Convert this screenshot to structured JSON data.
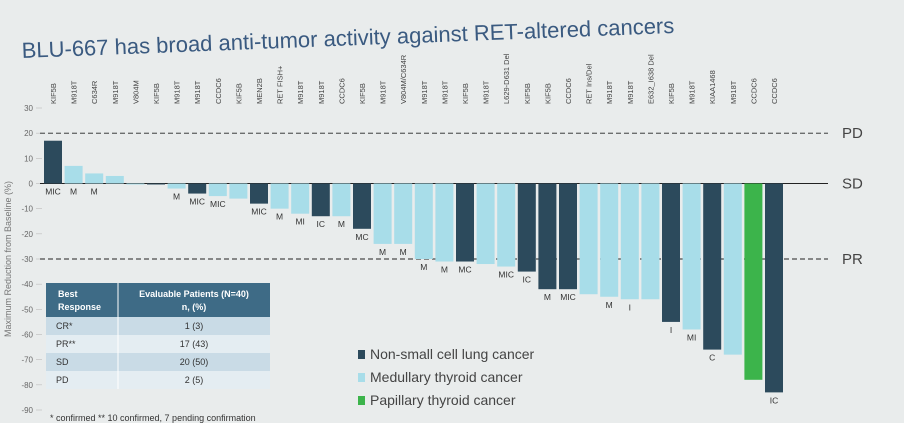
{
  "chart_data": {
    "type": "bar",
    "title": "BLU-667 has broad anti-tumor activity against RET-altered cancers",
    "ylabel": "Maximum Reduction from Baseline (%)",
    "ylim": [
      -90,
      30
    ],
    "yticks": [
      30,
      20,
      10,
      0,
      -10,
      -20,
      -30,
      -40,
      -50,
      -60,
      -70,
      -80,
      -90
    ],
    "reference_lines": [
      {
        "label": "PD",
        "value": 20,
        "style": "dashed"
      },
      {
        "label": "SD",
        "value": 0,
        "style": "solid"
      },
      {
        "label": "PR",
        "value": -30,
        "style": "dashed"
      }
    ],
    "legend": [
      {
        "key": "nsclc",
        "label": "Non-small cell lung cancer",
        "color": "#2c4a5c"
      },
      {
        "key": "mtc",
        "label": "Medullary thyroid cancer",
        "color": "#a8dde9"
      },
      {
        "key": "ptc",
        "label": "Papillary thyroid cancer",
        "color": "#3cb44b"
      }
    ],
    "bars": [
      {
        "mutation": "KIF5B",
        "value": 17,
        "type": "nsclc",
        "label": "MIC"
      },
      {
        "mutation": "M918T",
        "value": 7,
        "type": "mtc",
        "label": "M"
      },
      {
        "mutation": "C634R",
        "value": 4,
        "type": "mtc",
        "label": "M"
      },
      {
        "mutation": "M918T",
        "value": 3,
        "type": "mtc",
        "label": ""
      },
      {
        "mutation": "V804M",
        "value": 0,
        "type": "mtc",
        "label": ""
      },
      {
        "mutation": "KIF5B",
        "value": 0,
        "type": "nsclc",
        "label": ""
      },
      {
        "mutation": "M918T",
        "value": -2,
        "type": "mtc",
        "label": "M"
      },
      {
        "mutation": "M918T",
        "value": -4,
        "type": "nsclc",
        "label": "MIC"
      },
      {
        "mutation": "CCDC6",
        "value": -5,
        "type": "mtc",
        "label": "MIC"
      },
      {
        "mutation": "KIF5B",
        "value": -6,
        "type": "mtc",
        "label": ""
      },
      {
        "mutation": "MEN2B",
        "value": -8,
        "type": "nsclc",
        "label": "MIC"
      },
      {
        "mutation": "RET FISH+",
        "value": -10,
        "type": "mtc",
        "label": "M"
      },
      {
        "mutation": "M918T",
        "value": -12,
        "type": "mtc",
        "label": "MI"
      },
      {
        "mutation": "M918T",
        "value": -13,
        "type": "nsclc",
        "label": "IC"
      },
      {
        "mutation": "CCDC6",
        "value": -13,
        "type": "mtc",
        "label": "M"
      },
      {
        "mutation": "KIF5B",
        "value": -18,
        "type": "nsclc",
        "label": "MC"
      },
      {
        "mutation": "M918T",
        "value": -24,
        "type": "mtc",
        "label": "M"
      },
      {
        "mutation": "V804M/C634R",
        "value": -24,
        "type": "mtc",
        "label": "M"
      },
      {
        "mutation": "M918T",
        "value": -30,
        "type": "mtc",
        "label": "M"
      },
      {
        "mutation": "M918T",
        "value": -31,
        "type": "mtc",
        "label": "M"
      },
      {
        "mutation": "KIF5B",
        "value": -31,
        "type": "nsclc",
        "label": "MC"
      },
      {
        "mutation": "M918T",
        "value": -32,
        "type": "mtc",
        "label": ""
      },
      {
        "mutation": "L629-D631 Del",
        "value": -33,
        "type": "mtc",
        "label": "MIC"
      },
      {
        "mutation": "KIF5B",
        "value": -35,
        "type": "nsclc",
        "label": "IC"
      },
      {
        "mutation": "KIF5B",
        "value": -42,
        "type": "nsclc",
        "label": "M"
      },
      {
        "mutation": "CCDC6",
        "value": -42,
        "type": "nsclc",
        "label": "MIC"
      },
      {
        "mutation": "RET Ins/Del",
        "value": -44,
        "type": "mtc",
        "label": ""
      },
      {
        "mutation": "M918T",
        "value": -45,
        "type": "mtc",
        "label": "M"
      },
      {
        "mutation": "M918T",
        "value": -46,
        "type": "mtc",
        "label": "I"
      },
      {
        "mutation": "E632_I638 Del",
        "value": -46,
        "type": "mtc",
        "label": ""
      },
      {
        "mutation": "KIF5B",
        "value": -55,
        "type": "nsclc",
        "label": "I"
      },
      {
        "mutation": "M918T",
        "value": -58,
        "type": "mtc",
        "label": "MI"
      },
      {
        "mutation": "KIAA1468",
        "value": -66,
        "type": "nsclc",
        "label": "C"
      },
      {
        "mutation": "M918T",
        "value": -68,
        "type": "mtc",
        "label": ""
      },
      {
        "mutation": "CCDC6",
        "value": -78,
        "type": "ptc",
        "label": ""
      },
      {
        "mutation": "CCDC6",
        "value": -83,
        "type": "nsclc",
        "label": "IC"
      }
    ],
    "table": {
      "headers": [
        "Best Response",
        "Evaluable Patients (N=40) n, (%)"
      ],
      "rows": [
        {
          "response": "CR*",
          "patients": "1 (3)"
        },
        {
          "response": "PR**",
          "patients": "17 (43)"
        },
        {
          "response": "SD",
          "patients": "20 (50)"
        },
        {
          "response": "PD",
          "patients": "2 (5)"
        }
      ],
      "footnote": "* confirmed ** 10 confirmed, 7 pending confirmation"
    }
  }
}
